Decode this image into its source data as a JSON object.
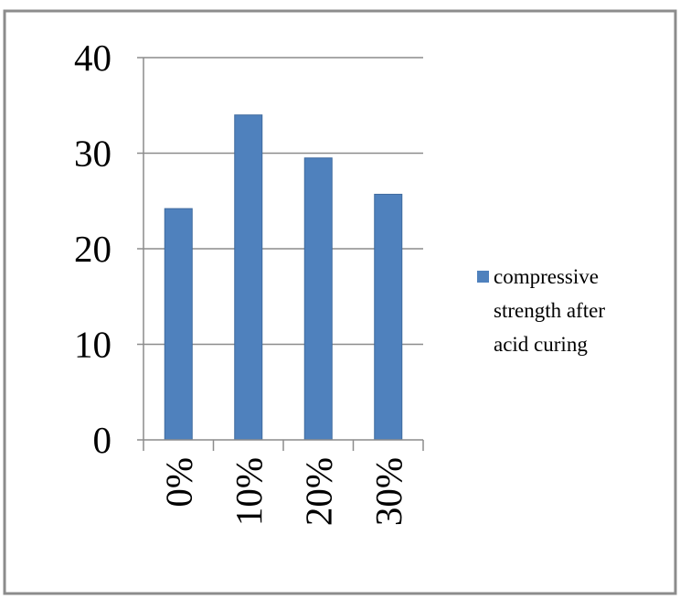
{
  "chart_data": {
    "type": "bar",
    "categories": [
      "0%",
      "10%",
      "20%",
      "30%"
    ],
    "series": [
      {
        "name": "compressive strength after acid curing",
        "values": [
          24.2,
          34.0,
          29.5,
          25.7
        ]
      }
    ],
    "ylim": [
      0,
      40
    ],
    "yticks": [
      0,
      10,
      20,
      30,
      40
    ],
    "ytick_labels": [
      "0",
      "10",
      "20",
      "30",
      "40"
    ],
    "grid": true,
    "legend_position": "right",
    "legend_lines": [
      "compressive",
      "strength after",
      "acid curing"
    ],
    "colors": {
      "bar": "#4f81bd",
      "bar_stroke": "#3f6a9e",
      "grid": "#8c8c8c",
      "axis": "#8c8c8c",
      "frame": "#8c8c8c"
    }
  }
}
